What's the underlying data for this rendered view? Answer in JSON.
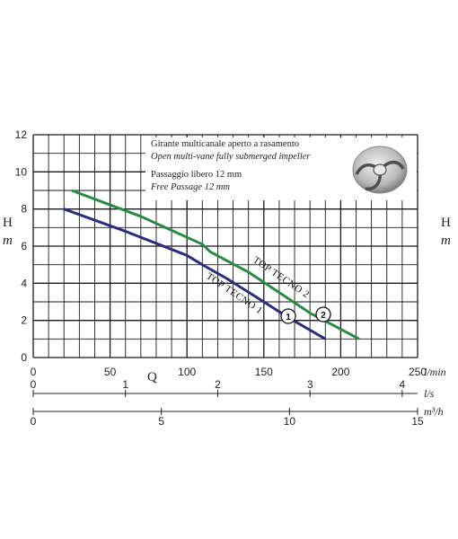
{
  "legend": {
    "line1": "Girante multicanale aperto a rasamento",
    "line2": "Open multi-vane fully submerged impeller",
    "line3": "Passaggio libero 12 mm",
    "line4": "Free Passage 12 mm"
  },
  "colors": {
    "curve1": "#2b2f7a",
    "curve2": "#2a8a44",
    "grid": "#1a1a1a",
    "background": "#ffffff"
  },
  "chart_data": {
    "type": "line",
    "y_label_left": "H",
    "y_unit_left": "m",
    "y_label_right": "H",
    "y_unit_right": "m",
    "x_label": "Q",
    "ylim": [
      0,
      12
    ],
    "y_ticks": [
      "0",
      "2",
      "4",
      "6",
      "8",
      "10",
      "12"
    ],
    "x_axes": [
      {
        "unit": "l/min",
        "range": [
          0,
          250
        ],
        "ticks": [
          "0",
          "50",
          "100",
          "150",
          "200",
          "250"
        ]
      },
      {
        "unit": "l/s",
        "range": [
          0,
          4.1667
        ],
        "ticks": [
          "0",
          "1",
          "2",
          "3",
          "4"
        ]
      },
      {
        "unit": "m³/h",
        "range": [
          0,
          15
        ],
        "ticks": [
          "0",
          "5",
          "10",
          "15"
        ]
      }
    ],
    "grid": true,
    "series": [
      {
        "name": "TOP TECNO 1",
        "marker": "1",
        "x": [
          20,
          60,
          100,
          110,
          125,
          150,
          165,
          190
        ],
        "y": [
          8.0,
          6.8,
          5.5,
          5.0,
          4.3,
          3.0,
          2.2,
          1.0
        ]
      },
      {
        "name": "TOP TECNO 2",
        "marker": "2",
        "x": [
          25,
          70,
          110,
          115,
          140,
          180,
          212
        ],
        "y": [
          9.0,
          7.6,
          6.1,
          5.7,
          4.6,
          2.4,
          1.0
        ]
      }
    ]
  }
}
